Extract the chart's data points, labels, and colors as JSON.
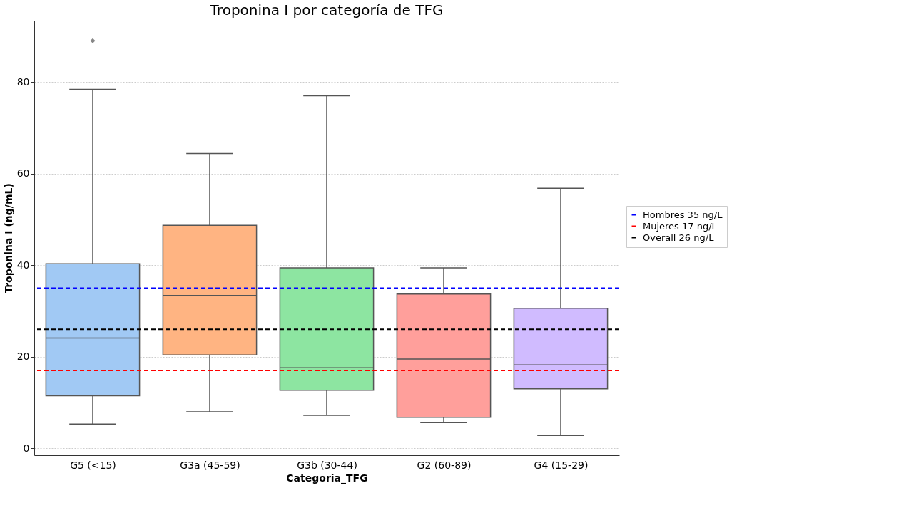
{
  "chart_data": {
    "type": "box",
    "title": "Troponina I por categoría de TFG",
    "xlabel": "Categoria_TFG",
    "ylabel": "Troponina I (ng/mL)",
    "categories": [
      "G5 (<15)",
      "G3a (45-59)",
      "G3b (30-44)",
      "G2 (60-89)",
      "G4 (15-29)"
    ],
    "colors": [
      "#a1c9f4",
      "#ffb482",
      "#8de5a1",
      "#ff9f9b",
      "#d0bbff"
    ],
    "boxes": [
      {
        "low": 5.3,
        "q1": 11.5,
        "median": 24.1,
        "q3": 40.3,
        "high": 78.4,
        "outliers": [
          89.0
        ]
      },
      {
        "low": 8.0,
        "q1": 20.4,
        "median": 33.4,
        "q3": 48.7,
        "high": 64.4
      },
      {
        "low": 7.2,
        "q1": 12.7,
        "median": 17.6,
        "q3": 39.4,
        "high": 77.0
      },
      {
        "low": 5.6,
        "q1": 6.8,
        "median": 19.5,
        "q3": 33.7,
        "high": 39.4
      },
      {
        "low": 2.8,
        "q1": 13.0,
        "median": 18.2,
        "q3": 30.6,
        "high": 56.8
      }
    ],
    "ylim": [
      -1.5,
      93.4
    ],
    "yticks": [
      0,
      20,
      40,
      60,
      80
    ],
    "grid": "y",
    "legend": "right",
    "marker": "diamond",
    "ref_lines": [
      {
        "axis": "y",
        "value": 35,
        "label": "Hombres 35 ng/L",
        "color": "#0000ff",
        "line_style": "dashed"
      },
      {
        "axis": "y",
        "value": 17,
        "label": "Mujeres 17 ng/L",
        "color": "#ff0000",
        "line_style": "dashed"
      },
      {
        "axis": "y",
        "value": 26,
        "label": "Overall 26 ng/L",
        "color": "#000000",
        "line_style": "dashed"
      }
    ]
  }
}
